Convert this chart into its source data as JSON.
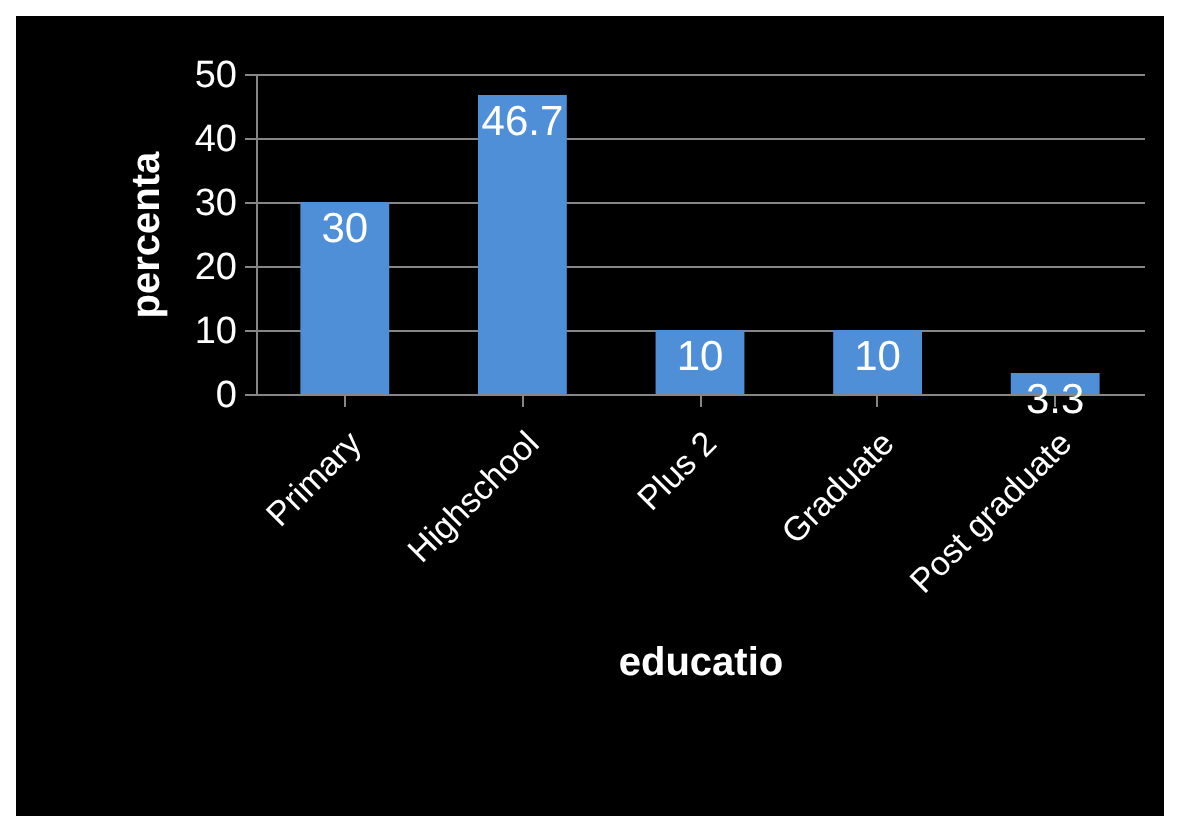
{
  "chart_data": {
    "type": "bar",
    "xlabel": "educatio",
    "ylabel": "percenta",
    "categories": [
      "Primary",
      "Highschool",
      "Plus 2",
      "Graduate",
      "Post graduate"
    ],
    "values": [
      30,
      46.7,
      10,
      10,
      3.3
    ],
    "color": "#4f8fd8",
    "ylim": [
      0,
      50
    ],
    "yticks": [
      0,
      10,
      20,
      30,
      40,
      50
    ],
    "grid": "y",
    "data_labels": true
  }
}
